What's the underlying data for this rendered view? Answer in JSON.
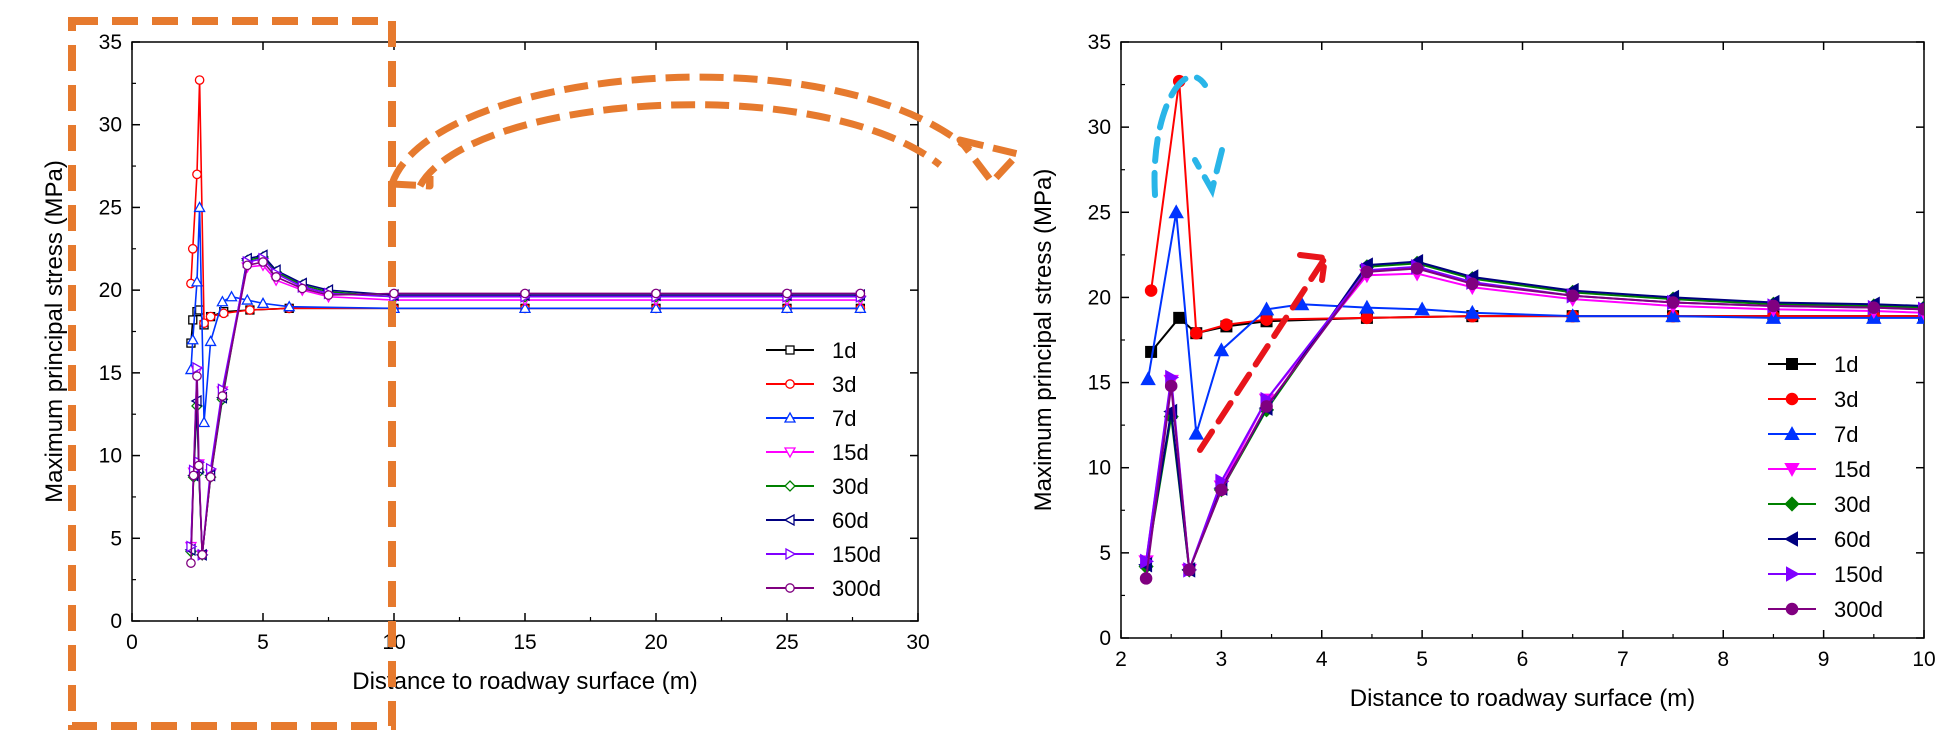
{
  "colors": {
    "accent_orange": "#E67A2E",
    "arrow_cyan": "#29B5E8",
    "arrow_red": "#E8151B"
  },
  "chart_data": [
    {
      "id": "overview",
      "type": "line",
      "title": "",
      "xlabel": "Distance to roadway surface (m)",
      "ylabel": "Maximum principal stress (MPa)",
      "xlim": [
        0,
        30
      ],
      "ylim": [
        0,
        35
      ],
      "xticks": [
        0,
        5,
        10,
        15,
        20,
        25,
        30
      ],
      "yticks": [
        0,
        5,
        10,
        15,
        20,
        25,
        30,
        35
      ],
      "legend_position": "lower-right",
      "marker_style": "hollow",
      "series": [
        {
          "name": "1d",
          "color": "#000000",
          "marker": "square",
          "x": [
            2.25,
            2.32,
            2.48,
            2.58,
            2.75,
            3.0,
            3.5,
            4.5,
            6,
            10,
            15,
            20,
            25,
            27.8
          ],
          "y": [
            16.8,
            18.2,
            18.7,
            18.8,
            17.9,
            18.4,
            18.7,
            18.8,
            18.9,
            18.9,
            18.9,
            18.9,
            18.9,
            18.9
          ]
        },
        {
          "name": "3d",
          "color": "#FF0000",
          "marker": "circle",
          "x": [
            2.25,
            2.32,
            2.48,
            2.58,
            2.75,
            3.0,
            3.5,
            4.5,
            6,
            10,
            15,
            20,
            25,
            27.8
          ],
          "y": [
            20.4,
            22.5,
            27.0,
            32.7,
            18.0,
            18.4,
            18.6,
            18.8,
            18.9,
            18.9,
            18.9,
            18.9,
            18.9,
            18.9
          ]
        },
        {
          "name": "7d",
          "color": "#0033FF",
          "marker": "triangle-up",
          "x": [
            2.25,
            2.32,
            2.48,
            2.58,
            2.75,
            3.0,
            3.45,
            3.8,
            4.4,
            5,
            6,
            10,
            15,
            20,
            25,
            27.8
          ],
          "y": [
            15.2,
            17.0,
            20.5,
            25.0,
            12.0,
            16.9,
            19.3,
            19.6,
            19.4,
            19.2,
            19.0,
            18.9,
            18.9,
            18.9,
            18.9,
            18.9
          ]
        },
        {
          "name": "15d",
          "color": "#FF00FF",
          "marker": "triangle-down",
          "x": [
            2.25,
            2.35,
            2.48,
            2.55,
            2.68,
            3.0,
            3.45,
            4.4,
            5,
            5.5,
            6.5,
            7.5,
            10,
            15,
            20,
            25,
            27.8
          ],
          "y": [
            4.5,
            9.0,
            15.1,
            9.5,
            4.0,
            8.9,
            13.9,
            21.4,
            21.5,
            20.6,
            20.0,
            19.6,
            19.4,
            19.4,
            19.4,
            19.4,
            19.4
          ]
        },
        {
          "name": "30d",
          "color": "#008000",
          "marker": "diamond",
          "x": [
            2.25,
            2.35,
            2.48,
            2.55,
            2.68,
            3.0,
            3.45,
            4.4,
            5,
            5.5,
            6.5,
            7.5,
            10,
            15,
            20,
            25,
            27.8
          ],
          "y": [
            4.2,
            8.7,
            13.0,
            9.0,
            4.0,
            8.7,
            13.4,
            21.8,
            22.0,
            21.1,
            20.3,
            19.9,
            19.6,
            19.6,
            19.6,
            19.6,
            19.6
          ]
        },
        {
          "name": "60d",
          "color": "#000080",
          "marker": "triangle-left",
          "x": [
            2.25,
            2.35,
            2.48,
            2.55,
            2.68,
            3.0,
            3.45,
            4.4,
            5,
            5.5,
            6.5,
            7.5,
            10,
            15,
            20,
            25,
            27.8
          ],
          "y": [
            4.3,
            8.8,
            13.3,
            9.2,
            4.0,
            8.8,
            13.5,
            21.9,
            22.1,
            21.2,
            20.4,
            20.0,
            19.7,
            19.7,
            19.7,
            19.7,
            19.7
          ]
        },
        {
          "name": "150d",
          "color": "#8000FF",
          "marker": "triangle-right",
          "x": [
            2.25,
            2.35,
            2.48,
            2.55,
            2.68,
            3.0,
            3.45,
            4.4,
            5,
            5.5,
            6.5,
            7.5,
            10,
            15,
            20,
            25,
            27.8
          ],
          "y": [
            4.5,
            9.1,
            15.3,
            9.6,
            4.0,
            9.2,
            14.0,
            21.7,
            21.9,
            21.0,
            20.2,
            19.8,
            19.6,
            19.6,
            19.6,
            19.6,
            19.6
          ]
        },
        {
          "name": "300d",
          "color": "#800080",
          "marker": "circle",
          "x": [
            2.25,
            2.35,
            2.48,
            2.55,
            2.68,
            3.0,
            3.45,
            4.4,
            5,
            5.5,
            6.5,
            7.5,
            10,
            15,
            20,
            25,
            27.8
          ],
          "y": [
            3.5,
            8.8,
            14.8,
            9.4,
            4.0,
            8.7,
            13.6,
            21.5,
            21.7,
            20.8,
            20.1,
            19.7,
            19.8,
            19.8,
            19.8,
            19.8,
            19.8
          ]
        }
      ]
    },
    {
      "id": "zoom",
      "type": "line",
      "title": "",
      "xlabel": "Distance to roadway surface (m)",
      "ylabel": "Maximum principal stress (MPa)",
      "xlim": [
        2,
        10
      ],
      "ylim": [
        0,
        35
      ],
      "xticks": [
        2,
        3,
        4,
        5,
        6,
        7,
        8,
        9,
        10
      ],
      "yticks": [
        0,
        5,
        10,
        15,
        20,
        25,
        30,
        35
      ],
      "legend_position": "lower-right",
      "marker_style": "filled",
      "series": [
        {
          "name": "1d",
          "color": "#000000",
          "marker": "square",
          "x": [
            2.3,
            2.58,
            2.75,
            3.05,
            3.45,
            4.45,
            5.5,
            6.5,
            7.5,
            8.5,
            9.5,
            10
          ],
          "y": [
            16.8,
            18.8,
            17.9,
            18.3,
            18.6,
            18.8,
            18.9,
            18.9,
            18.9,
            18.9,
            18.9,
            18.9
          ]
        },
        {
          "name": "3d",
          "color": "#FF0000",
          "marker": "circle",
          "x": [
            2.3,
            2.58,
            2.75,
            3.05,
            3.45,
            4.45,
            5.5,
            6.5,
            7.5,
            8.5,
            9.5,
            10
          ],
          "y": [
            20.4,
            32.7,
            17.9,
            18.4,
            18.7,
            18.8,
            18.9,
            18.9,
            18.9,
            18.9,
            18.9,
            18.9
          ]
        },
        {
          "name": "7d",
          "color": "#0033FF",
          "marker": "triangle-up",
          "x": [
            2.27,
            2.55,
            2.75,
            3.0,
            3.45,
            3.8,
            4.45,
            5,
            5.5,
            6.5,
            7.5,
            8.5,
            9.5,
            10
          ],
          "y": [
            15.2,
            25.0,
            12.0,
            16.9,
            19.3,
            19.6,
            19.4,
            19.3,
            19.1,
            18.9,
            18.9,
            18.8,
            18.8,
            18.8
          ]
        },
        {
          "name": "15d",
          "color": "#FF00FF",
          "marker": "triangle-down",
          "x": [
            2.25,
            2.5,
            2.68,
            3.0,
            3.45,
            4.45,
            4.95,
            5.5,
            6.5,
            7.5,
            8.5,
            9.5,
            10
          ],
          "y": [
            4.5,
            15.1,
            4.0,
            8.9,
            14.0,
            21.3,
            21.4,
            20.6,
            19.9,
            19.5,
            19.3,
            19.2,
            19.1
          ]
        },
        {
          "name": "30d",
          "color": "#008000",
          "marker": "diamond",
          "x": [
            2.25,
            2.5,
            2.68,
            3.0,
            3.45,
            4.45,
            4.95,
            5.5,
            6.5,
            7.5,
            8.5,
            9.5,
            10
          ],
          "y": [
            4.2,
            13.0,
            4.0,
            8.7,
            13.4,
            21.8,
            22.0,
            21.1,
            20.3,
            19.9,
            19.6,
            19.5,
            19.4
          ]
        },
        {
          "name": "60d",
          "color": "#000080",
          "marker": "triangle-left",
          "x": [
            2.25,
            2.5,
            2.68,
            3.0,
            3.45,
            4.45,
            4.95,
            5.5,
            6.5,
            7.5,
            8.5,
            9.5,
            10
          ],
          "y": [
            4.3,
            13.3,
            4.0,
            8.8,
            13.5,
            21.9,
            22.1,
            21.2,
            20.4,
            20.0,
            19.7,
            19.6,
            19.5
          ]
        },
        {
          "name": "150d",
          "color": "#8000FF",
          "marker": "triangle-right",
          "x": [
            2.25,
            2.5,
            2.68,
            3.0,
            3.45,
            4.45,
            4.95,
            5.5,
            6.5,
            7.5,
            8.5,
            9.5,
            10
          ],
          "y": [
            4.5,
            15.3,
            4.0,
            9.2,
            14.0,
            21.6,
            21.8,
            20.9,
            20.1,
            19.7,
            19.5,
            19.4,
            19.3
          ]
        },
        {
          "name": "300d",
          "color": "#800080",
          "marker": "circle",
          "x": [
            2.25,
            2.5,
            2.68,
            3.0,
            3.45,
            4.45,
            4.95,
            5.5,
            6.5,
            7.5,
            8.5,
            9.5,
            10
          ],
          "y": [
            3.5,
            14.8,
            4.0,
            8.7,
            13.6,
            21.5,
            21.7,
            20.8,
            20.1,
            19.7,
            19.5,
            19.4,
            19.3
          ]
        }
      ]
    }
  ]
}
